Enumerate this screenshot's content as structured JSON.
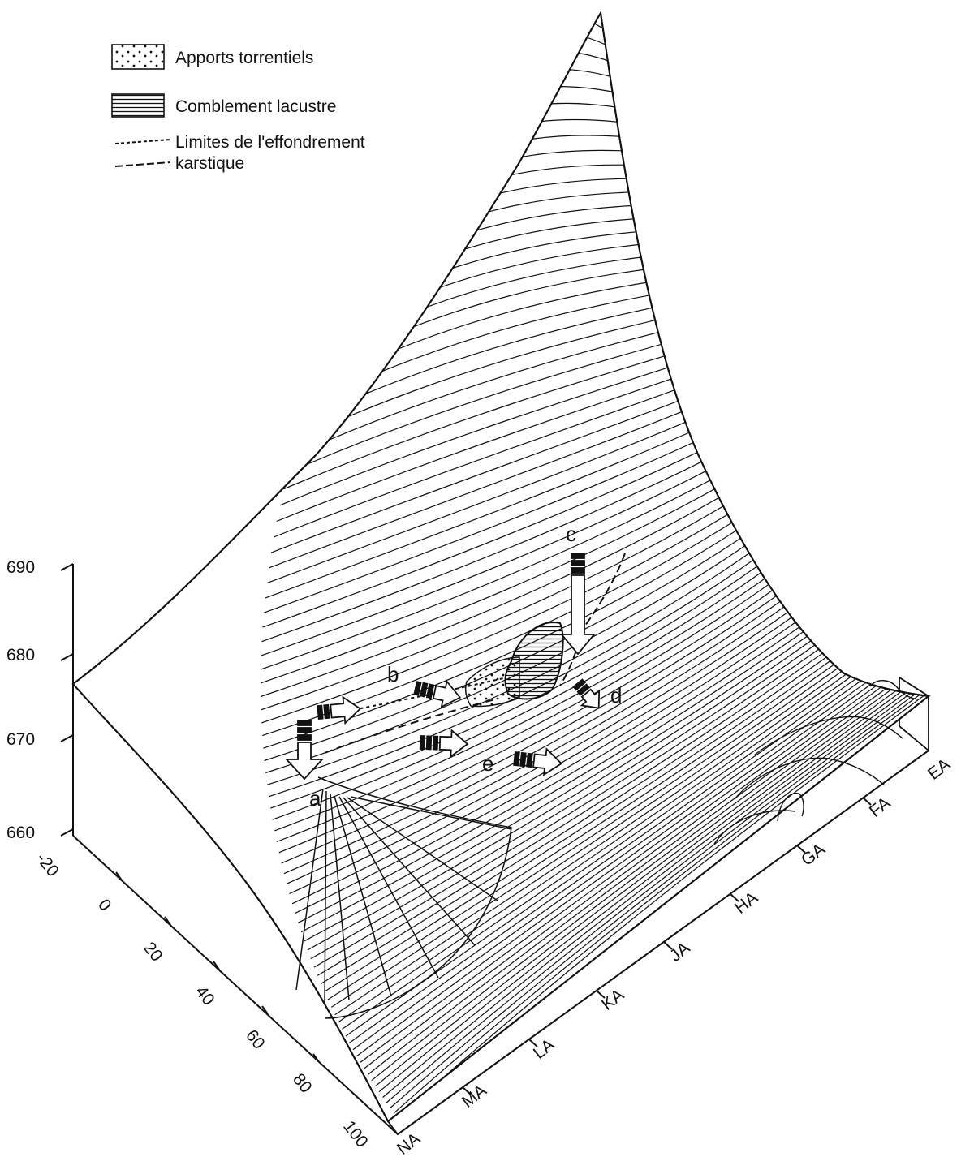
{
  "legend": {
    "items": [
      {
        "key": "apports",
        "label": "Apports torrentiels",
        "swatch": "dots"
      },
      {
        "key": "comblement",
        "label": "Comblement lacustre",
        "swatch": "hlines"
      },
      {
        "key": "limites",
        "label_line1": "Limites de l'effondrement",
        "label_line2": "karstique",
        "swatch": "dashed-lines"
      }
    ]
  },
  "vertical_axis": {
    "ticks": [
      "690",
      "680",
      "670",
      "660"
    ]
  },
  "left_axis": {
    "ticks": [
      "-20",
      "0",
      "20",
      "40",
      "60",
      "80",
      "100"
    ]
  },
  "right_axis": {
    "ticks": [
      "NA",
      "MA",
      "LA",
      "KA",
      "JA",
      "HA",
      "GA",
      "FA",
      "EA"
    ]
  },
  "points": {
    "a": "a",
    "b": "b",
    "c": "c",
    "d": "d",
    "e": "e"
  },
  "colors": {
    "ink": "#111111",
    "background": "#ffffff"
  }
}
